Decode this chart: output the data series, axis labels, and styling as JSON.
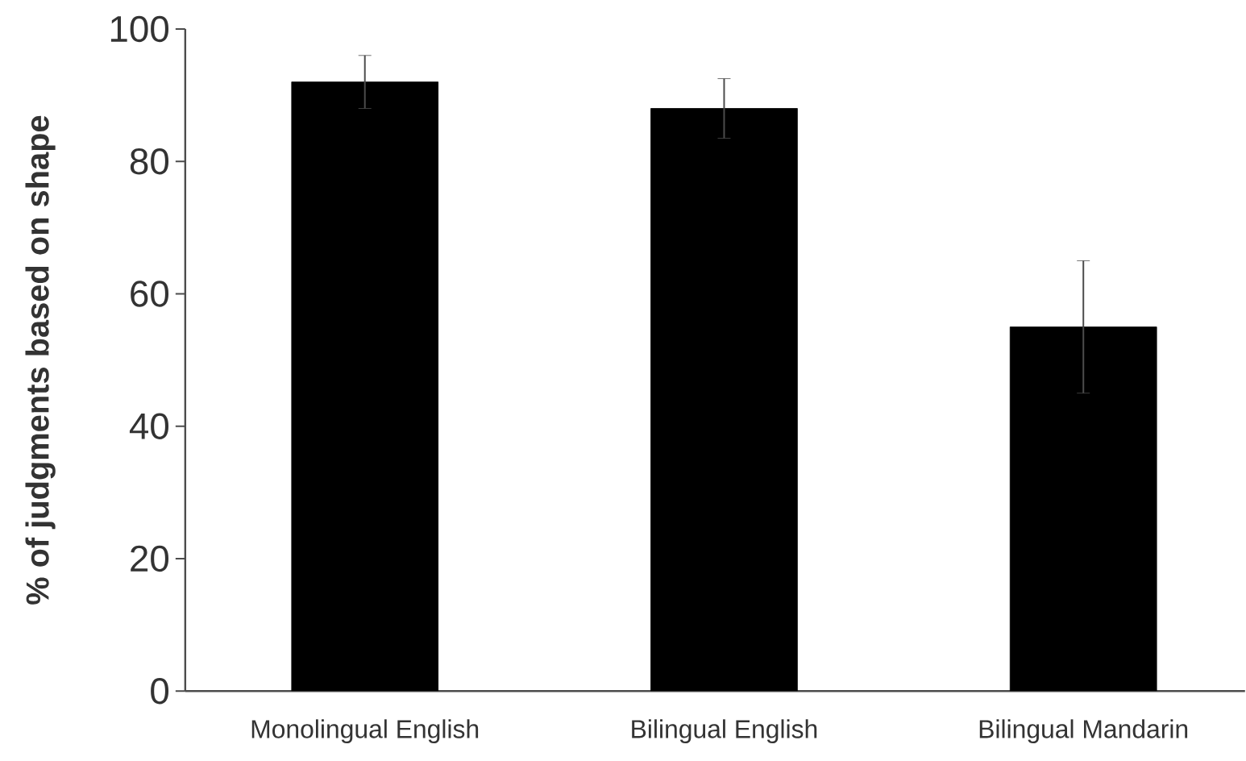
{
  "chart_data": {
    "type": "bar",
    "ylabel": "% of judgments based on shape",
    "categories": [
      "Monolingual English",
      "Bilingual English",
      "Bilingual Mandarin"
    ],
    "values": [
      92,
      88,
      55
    ],
    "errors": [
      4,
      4.5,
      10
    ],
    "color": "#000000",
    "ylim": [
      0,
      100
    ],
    "yticks": [
      0,
      20,
      40,
      60,
      80,
      100
    ],
    "grid": false
  }
}
